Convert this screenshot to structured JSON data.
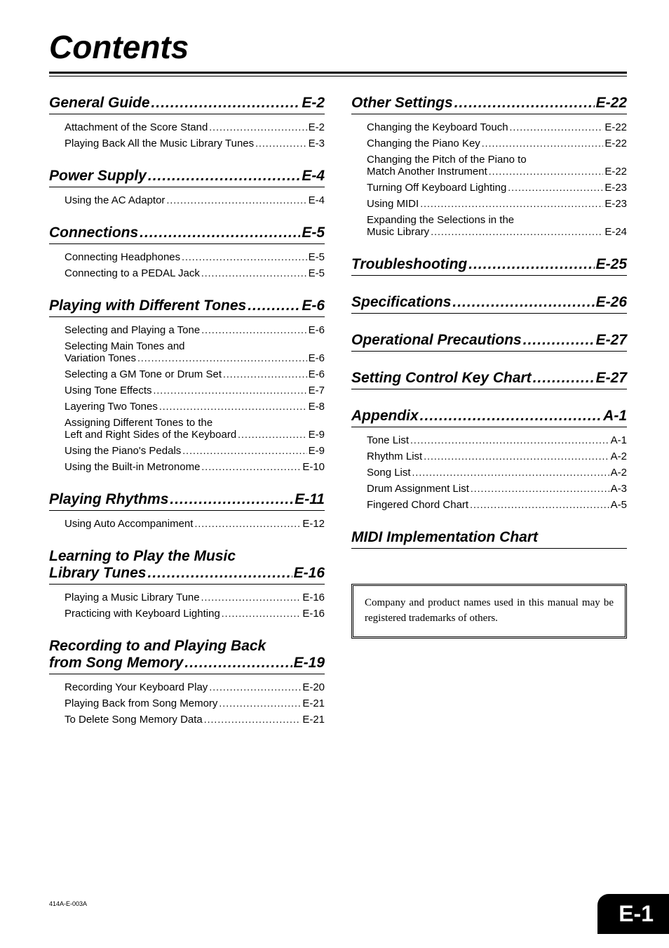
{
  "title": "Contents",
  "footer_code": "414A-E-003A",
  "page_tag": "E-1",
  "trademark_notice": "Company and product names used in this manual may be registered trademarks of others.",
  "dots_fill": "...........................................................................................",
  "left_sections": [
    {
      "type": "section",
      "title": "General Guide",
      "page": "E-2",
      "first": true,
      "items": [
        {
          "label": "Attachment of the Score Stand",
          "page": "E-2"
        },
        {
          "label": "Playing Back All the Music Library Tunes",
          "page": "E-3"
        }
      ]
    },
    {
      "type": "section",
      "title": "Power Supply",
      "page": "E-4",
      "items": [
        {
          "label": "Using the AC Adaptor",
          "page": "E-4"
        }
      ]
    },
    {
      "type": "section",
      "title": "Connections",
      "page": "E-5",
      "items": [
        {
          "label": "Connecting Headphones",
          "page": "E-5"
        },
        {
          "label": "Connecting to a PEDAL Jack",
          "page": "E-5"
        }
      ]
    },
    {
      "type": "section",
      "title": "Playing with Different Tones",
      "page": "E-6",
      "items": [
        {
          "label": "Selecting and Playing a Tone",
          "page": "E-6"
        },
        {
          "label_line1": "Selecting Main Tones and",
          "label_line2": "Variation Tones",
          "page": "E-6"
        },
        {
          "label": "Selecting a GM Tone or Drum Set",
          "page": "E-6"
        },
        {
          "label": "Using Tone Effects",
          "page": "E-7"
        },
        {
          "label": "Layering Two Tones",
          "page": "E-8"
        },
        {
          "label_line1": "Assigning Different Tones to the",
          "label_line2": "Left and Right Sides of the Keyboard",
          "page": "E-9"
        },
        {
          "label": "Using the Piano's Pedals",
          "page": "E-9"
        },
        {
          "label": "Using the Built-in Metronome",
          "page": "E-10"
        }
      ]
    },
    {
      "type": "section",
      "title": "Playing Rhythms",
      "page": "E-11",
      "items": [
        {
          "label": "Using Auto Accompaniment",
          "page": "E-12"
        }
      ]
    },
    {
      "type": "section_multiline",
      "title_line1": "Learning to Play the Music",
      "title_line2": "Library Tunes",
      "page": "E-16",
      "items": [
        {
          "label": "Playing a Music Library Tune",
          "page": "E-16"
        },
        {
          "label": "Practicing with Keyboard Lighting",
          "page": "E-16"
        }
      ]
    },
    {
      "type": "section_multiline",
      "title_line1": "Recording to and Playing Back",
      "title_line2": "from Song Memory",
      "page": "E-19",
      "items": [
        {
          "label": "Recording Your Keyboard Play",
          "page": "E-20"
        },
        {
          "label": "Playing Back from Song Memory",
          "page": "E-21"
        },
        {
          "label": "To Delete Song Memory Data",
          "page": "E-21"
        }
      ]
    }
  ],
  "right_sections": [
    {
      "type": "section",
      "title": "Other Settings",
      "page": "E-22",
      "first": true,
      "items": [
        {
          "label": "Changing the Keyboard Touch",
          "page": "E-22"
        },
        {
          "label": "Changing the Piano Key",
          "page": "E-22"
        },
        {
          "label_line1": "Changing the Pitch of the Piano to",
          "label_line2": "Match Another Instrument",
          "page": "E-22"
        },
        {
          "label": "Turning Off Keyboard Lighting",
          "page": "E-23"
        },
        {
          "label": "Using MIDI",
          "page": "E-23"
        },
        {
          "label_line1": "Expanding the Selections in the",
          "label_line2": "Music Library",
          "page": "E-24"
        }
      ]
    },
    {
      "type": "section",
      "title": "Troubleshooting",
      "page": "E-25",
      "items": []
    },
    {
      "type": "section",
      "title": "Specifications",
      "page": "E-26",
      "items": []
    },
    {
      "type": "section",
      "title": "Operational Precautions",
      "page": "E-27",
      "items": []
    },
    {
      "type": "section",
      "title": "Setting Control Key Chart",
      "page": "E-27",
      "items": []
    },
    {
      "type": "section",
      "title": "Appendix",
      "page": "A-1",
      "items": [
        {
          "label": "Tone List",
          "page": "A-1"
        },
        {
          "label": "Rhythm List",
          "page": "A-2"
        },
        {
          "label": "Song List",
          "page": "A-2"
        },
        {
          "label": "Drum Assignment List",
          "page": "A-3"
        },
        {
          "label": "Fingered Chord Chart",
          "page": "A-5"
        }
      ]
    },
    {
      "type": "section_standalone",
      "title": "MIDI Implementation Chart"
    }
  ]
}
